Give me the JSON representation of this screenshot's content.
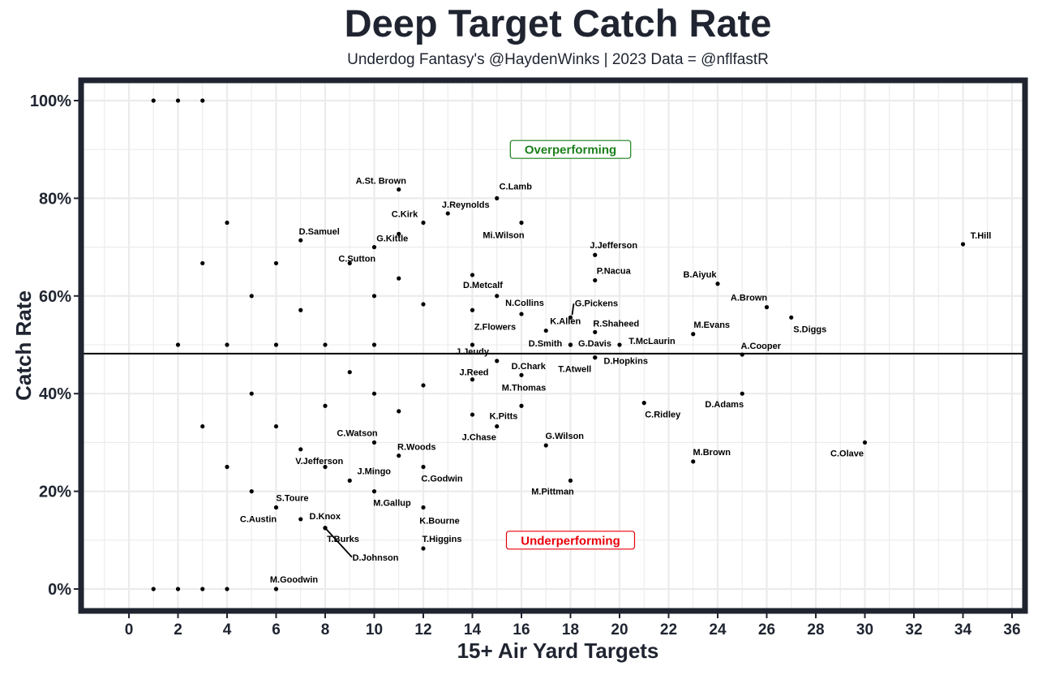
{
  "chart_data": {
    "type": "scatter",
    "title": "Deep Target Catch Rate",
    "subtitle": "Underdog Fantasy's @HaydenWinks | 2023 Data = @nflfastR",
    "xlabel": "15+ Air Yard Targets",
    "ylabel": "Catch Rate",
    "xlim": [
      -1.5,
      36.8
    ],
    "ylim": [
      -5,
      105
    ],
    "x_ticks": [
      0,
      2,
      4,
      6,
      8,
      10,
      12,
      14,
      16,
      18,
      20,
      22,
      24,
      26,
      28,
      30,
      32,
      34,
      36
    ],
    "y_ticks": [
      0,
      20,
      40,
      60,
      80,
      100
    ],
    "y_tick_labels": [
      "0%",
      "20%",
      "40%",
      "60%",
      "80%",
      "100%"
    ],
    "grid": true,
    "reference_line_y": 48.2,
    "annotations": [
      {
        "text": "Overperforming",
        "x": 18,
        "y": 90,
        "color": "#1a7f1a"
      },
      {
        "text": "Underperforming",
        "x": 18,
        "y": 10,
        "color": "#e8000b"
      }
    ],
    "points": [
      {
        "label": "T.Hill",
        "x": 34,
        "y": 70.6
      },
      {
        "label": "A.St. Brown",
        "x": 11,
        "y": 81.8
      },
      {
        "label": "C.Lamb",
        "x": 15,
        "y": 80.0
      },
      {
        "label": "J.Reynolds",
        "x": 13,
        "y": 76.9
      },
      {
        "label": "C.Kirk",
        "x": 12,
        "y": 75.0
      },
      {
        "label": "Mi.Wilson",
        "x": 16,
        "y": 75.0
      },
      {
        "label": "D.Samuel",
        "x": 7,
        "y": 71.4
      },
      {
        "label": "G.Kittle",
        "x": 11,
        "y": 72.7
      },
      {
        "label": "C.Sutton",
        "x": 9,
        "y": 66.7
      },
      {
        "label": "J.Jefferson",
        "x": 19,
        "y": 68.4
      },
      {
        "label": "P.Nacua",
        "x": 19,
        "y": 63.2
      },
      {
        "label": "D.Metcalf",
        "x": 14,
        "y": 64.3
      },
      {
        "label": "B.Aiyuk",
        "x": 24,
        "y": 62.5
      },
      {
        "label": "A.Brown",
        "x": 26,
        "y": 57.7
      },
      {
        "label": "S.Diggs",
        "x": 27,
        "y": 55.6
      },
      {
        "label": "N.Collins",
        "x": 16,
        "y": 56.3
      },
      {
        "label": "G.Pickens",
        "x": 18,
        "y": 55.6
      },
      {
        "label": "Z.Flowers",
        "x": 14,
        "y": 57.1
      },
      {
        "label": "K.Allen",
        "x": 17,
        "y": 52.9
      },
      {
        "label": "R.Shaheed",
        "x": 19,
        "y": 52.6
      },
      {
        "label": "M.Evans",
        "x": 23,
        "y": 52.2
      },
      {
        "label": "D.Smith",
        "x": 18,
        "y": 50.0
      },
      {
        "label": "G.Davis",
        "x": 18,
        "y": 50.0
      },
      {
        "label": "T.McLaurin",
        "x": 20,
        "y": 50.0
      },
      {
        "label": "A.Cooper",
        "x": 25,
        "y": 48.0
      },
      {
        "label": "J.Jeudy",
        "x": 14,
        "y": 50.0
      },
      {
        "label": "D.Hopkins",
        "x": 19,
        "y": 47.4
      },
      {
        "label": "T.Atwell",
        "x": 19,
        "y": 47.4
      },
      {
        "label": "D.Chark",
        "x": 15,
        "y": 46.7
      },
      {
        "label": "J.Reed",
        "x": 14,
        "y": 42.9
      },
      {
        "label": "M.Thomas",
        "x": 16,
        "y": 43.8
      },
      {
        "label": "D.Adams",
        "x": 25,
        "y": 40.0
      },
      {
        "label": "C.Ridley",
        "x": 21,
        "y": 38.1
      },
      {
        "label": "K.Pitts",
        "x": 16,
        "y": 37.5
      },
      {
        "label": "J.Chase",
        "x": 15,
        "y": 33.3
      },
      {
        "label": "G.Wilson",
        "x": 17,
        "y": 29.4
      },
      {
        "label": "C.Olave",
        "x": 30,
        "y": 30.0
      },
      {
        "label": "M.Brown",
        "x": 23,
        "y": 26.1
      },
      {
        "label": "C.Watson",
        "x": 10,
        "y": 30.0
      },
      {
        "label": "R.Woods",
        "x": 11,
        "y": 27.3
      },
      {
        "label": "V.Jefferson",
        "x": 7,
        "y": 28.6
      },
      {
        "label": "C.Godwin",
        "x": 12,
        "y": 25.0
      },
      {
        "label": "J.Mingo",
        "x": 9,
        "y": 22.2
      },
      {
        "label": "M.Pittman",
        "x": 18,
        "y": 22.2
      },
      {
        "label": "M.Gallup",
        "x": 10,
        "y": 20.0
      },
      {
        "label": "S.Toure",
        "x": 6,
        "y": 16.7
      },
      {
        "label": "C.Austin",
        "x": 6,
        "y": 16.7
      },
      {
        "label": "D.Knox",
        "x": 7,
        "y": 14.3
      },
      {
        "label": "T.Burks",
        "x": 8,
        "y": 12.5
      },
      {
        "label": "D.Johnson",
        "x": 8,
        "y": 12.5
      },
      {
        "label": "K.Bourne",
        "x": 12,
        "y": 16.7
      },
      {
        "label": "T.Higgins",
        "x": 12,
        "y": 8.3
      },
      {
        "label": "M.Goodwin",
        "x": 6,
        "y": 0.0
      },
      {
        "x": 1,
        "y": 100
      },
      {
        "x": 2,
        "y": 100
      },
      {
        "x": 3,
        "y": 100
      },
      {
        "x": 4,
        "y": 75
      },
      {
        "x": 3,
        "y": 66.7
      },
      {
        "x": 6,
        "y": 66.7
      },
      {
        "x": 5,
        "y": 60
      },
      {
        "x": 7,
        "y": 57.1
      },
      {
        "x": 10,
        "y": 70
      },
      {
        "x": 2,
        "y": 50
      },
      {
        "x": 4,
        "y": 50
      },
      {
        "x": 6,
        "y": 50
      },
      {
        "x": 8,
        "y": 50
      },
      {
        "x": 10,
        "y": 50
      },
      {
        "x": 10,
        "y": 60
      },
      {
        "x": 11,
        "y": 63.6
      },
      {
        "x": 12,
        "y": 58.3
      },
      {
        "x": 15,
        "y": 60
      },
      {
        "x": 9,
        "y": 44.4
      },
      {
        "x": 12,
        "y": 41.7
      },
      {
        "x": 5,
        "y": 40
      },
      {
        "x": 10,
        "y": 40
      },
      {
        "x": 8,
        "y": 37.5
      },
      {
        "x": 11,
        "y": 36.4
      },
      {
        "x": 14,
        "y": 35.7
      },
      {
        "x": 3,
        "y": 33.3
      },
      {
        "x": 6,
        "y": 33.3
      },
      {
        "x": 4,
        "y": 25
      },
      {
        "x": 8,
        "y": 25
      },
      {
        "x": 5,
        "y": 20
      },
      {
        "x": 1,
        "y": 0
      },
      {
        "x": 2,
        "y": 0
      },
      {
        "x": 3,
        "y": 0
      },
      {
        "x": 4,
        "y": 0
      }
    ]
  }
}
